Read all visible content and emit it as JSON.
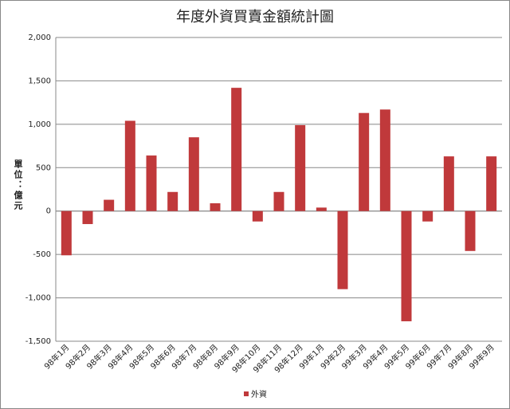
{
  "chart_data": {
    "type": "bar",
    "title": "年度外資買賣金額統計圖",
    "y_label": "單位：億元",
    "categories": [
      "98年1月",
      "98年2月",
      "98年3月",
      "98年4月",
      "98年5月",
      "98年6月",
      "98年7月",
      "98年8月",
      "98年9月",
      "98年10月",
      "98年11月",
      "98年12月",
      "99年1月",
      "99年2月",
      "99年3月",
      "99年4月",
      "99年5月",
      "99年6月",
      "99年7月",
      "99年8月",
      "99年9月"
    ],
    "series": [
      {
        "name": "外資",
        "color": "#c0393b",
        "values": [
          -510,
          -150,
          130,
          1040,
          640,
          220,
          850,
          90,
          1420,
          -120,
          220,
          990,
          40,
          -900,
          1130,
          1170,
          -1270,
          -120,
          630,
          -460,
          630
        ]
      }
    ],
    "ylim": [
      -1500,
      2000
    ],
    "yticks": [
      {
        "value": -1500,
        "label": "-1,500"
      },
      {
        "value": -1000,
        "label": "-1,000"
      },
      -500,
      0,
      500,
      {
        "value": 1000,
        "label": "1,000"
      },
      {
        "value": 1500,
        "label": "1,500"
      },
      {
        "value": 2000,
        "label": "2,000"
      }
    ],
    "grid": true,
    "legend": "bottom"
  }
}
